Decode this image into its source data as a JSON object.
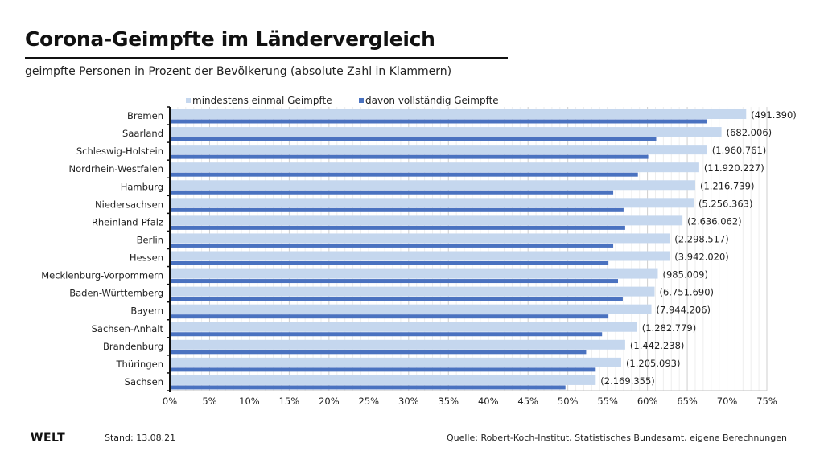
{
  "header": {
    "title": "Corona-Geimpfte im Ländervergleich",
    "subtitle": "geimpfte Personen in Prozent der Bevölkerung (absolute Zahl in Klammern)"
  },
  "footer": {
    "logo": "WELT",
    "date": "Stand:  13.08.21",
    "source": "Quelle: Robert-Koch-Institut, Statistisches Bundesamt, eigene Berechnungen"
  },
  "colors": {
    "first_dose": "#c5d7ee",
    "fully_vaccinated": "#4a72c0",
    "grid": "#d9d9d9"
  },
  "chart_data": {
    "type": "bar",
    "orientation": "horizontal",
    "title": "Corona-Geimpfte im Ländervergleich",
    "xlabel": "",
    "ylabel": "",
    "xlim": [
      0,
      75
    ],
    "x_ticks": [
      "0%",
      "5%",
      "10%",
      "15%",
      "20%",
      "25%",
      "30%",
      "35%",
      "40%",
      "45%",
      "50%",
      "55%",
      "60%",
      "65%",
      "70%",
      "75%"
    ],
    "grid": true,
    "legend_position": "top",
    "categories": [
      "Bremen",
      "Saarland",
      "Schleswig-Holstein",
      "Nordrhein-Westfalen",
      "Hamburg",
      "Niedersachsen",
      "Rheinland-Pfalz",
      "Berlin",
      "Hessen",
      "Mecklenburg-Vorpommern",
      "Baden-Württemberg",
      "Bayern",
      "Sachsen-Anhalt",
      "Brandenburg",
      "Thüringen",
      "Sachsen"
    ],
    "series": [
      {
        "name": "mindestens einmal Geimpfte",
        "values": [
          72.4,
          69.3,
          67.5,
          66.5,
          66.0,
          65.8,
          64.4,
          62.8,
          62.8,
          61.3,
          60.9,
          60.5,
          58.7,
          57.2,
          56.7,
          53.5
        ]
      },
      {
        "name": "davon vollständig Geimpfte",
        "values": [
          67.5,
          61.1,
          60.1,
          58.8,
          55.7,
          57.0,
          57.2,
          55.7,
          55.1,
          56.3,
          56.9,
          55.1,
          54.3,
          52.3,
          53.5,
          49.7
        ]
      }
    ],
    "annotations": [
      "(491.390)",
      "(682.006)",
      "(1.960.761)",
      "(11.920.227)",
      "(1.216.739)",
      "(5.256.363)",
      "(2.636.062)",
      "(2.298.517)",
      "(3.942.020)",
      "(985.009)",
      "(6.751.690)",
      "(7.944.206)",
      "(1.282.779)",
      "(1.442.238)",
      "(1.205.093)",
      "(2.169.355)"
    ]
  }
}
